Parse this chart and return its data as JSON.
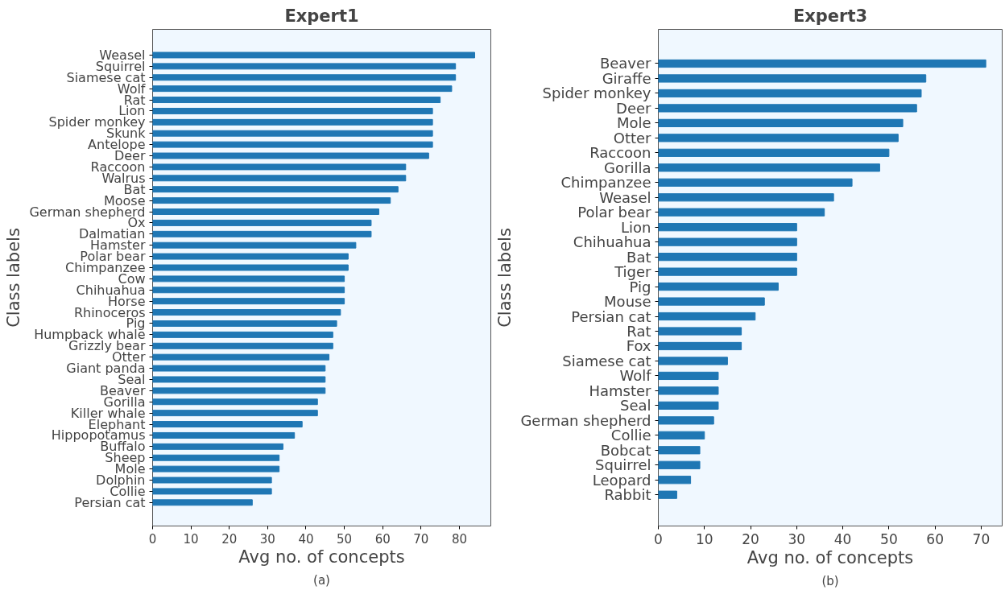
{
  "chart_data": [
    {
      "type": "bar",
      "orientation": "horizontal",
      "title": "Expert1",
      "xlabel": "Avg no. of concepts",
      "ylabel": "Class labels",
      "color": "#1f77b4",
      "categories": [
        "Weasel",
        "Squirrel",
        "Siamese cat",
        "Wolf",
        "Rat",
        "Lion",
        "Spider monkey",
        "Skunk",
        "Antelope",
        "Deer",
        "Raccoon",
        "Walrus",
        "Bat",
        "Moose",
        "German shepherd",
        "Ox",
        "Dalmatian",
        "Hamster",
        "Polar bear",
        "Chimpanzee",
        "Cow",
        "Chihuahua",
        "Horse",
        "Rhinoceros",
        "Pig",
        "Humpback whale",
        "Grizzly bear",
        "Otter",
        "Giant panda",
        "Seal",
        "Beaver",
        "Gorilla",
        "Killer whale",
        "Elephant",
        "Hippopotamus",
        "Buffalo",
        "Sheep",
        "Mole",
        "Dolphin",
        "Collie",
        "Persian cat"
      ],
      "values": [
        84,
        79,
        79,
        78,
        75,
        73,
        73,
        73,
        73,
        72,
        66,
        66,
        64,
        62,
        59,
        57,
        57,
        53,
        51,
        51,
        50,
        50,
        50,
        49,
        48,
        47,
        47,
        46,
        45,
        45,
        45,
        43,
        43,
        39,
        37,
        34,
        33,
        33,
        31,
        31,
        26
      ],
      "xlim": [
        0,
        88.2
      ],
      "xticks": [
        0,
        10,
        20,
        30,
        40,
        50,
        60,
        70,
        80
      ],
      "annotations": [
        "(a)"
      ]
    },
    {
      "type": "bar",
      "orientation": "horizontal",
      "title": "Expert3",
      "xlabel": "Avg no. of concepts",
      "ylabel": "Class labels",
      "color": "#1f77b4",
      "categories": [
        "Beaver",
        "Giraffe",
        "Spider monkey",
        "Deer",
        "Mole",
        "Otter",
        "Raccoon",
        "Gorilla",
        "Chimpanzee",
        "Weasel",
        "Polar bear",
        "Lion",
        "Chihuahua",
        "Bat",
        "Tiger",
        "Pig",
        "Mouse",
        "Persian cat",
        "Rat",
        "Fox",
        "Siamese cat",
        "Wolf",
        "Hamster",
        "Seal",
        "German shepherd",
        "Collie",
        "Bobcat",
        "Squirrel",
        "Leopard",
        "Rabbit"
      ],
      "values": [
        71,
        58,
        57,
        56,
        53,
        52,
        50,
        48,
        42,
        38,
        36,
        30,
        30,
        30,
        30,
        26,
        23,
        21,
        18,
        18,
        15,
        13,
        13,
        13,
        12,
        10,
        9,
        9,
        7,
        4
      ],
      "xlim": [
        0,
        74.55
      ],
      "xticks": [
        0,
        10,
        20,
        30,
        40,
        50,
        60,
        70
      ],
      "annotations": [
        "(b)"
      ]
    }
  ]
}
